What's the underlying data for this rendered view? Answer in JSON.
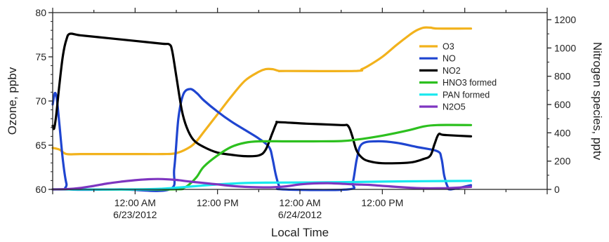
{
  "chart_data": {
    "type": "line",
    "xlabel": "Local Time",
    "ylabel_left": "Ozone, ppbv",
    "ylabel_right": "Nitrogen species, pptv",
    "x_range_hours": [
      -12,
      60
    ],
    "x_tick_labels": [
      {
        "hour": 0,
        "line1": "12:00 AM",
        "line2": "6/23/2012"
      },
      {
        "hour": 12,
        "line1": "12:00 PM",
        "line2": ""
      },
      {
        "hour": 24,
        "line1": "12:00 AM",
        "line2": "6/24/2012"
      },
      {
        "hour": 36,
        "line1": "12:00 PM",
        "line2": ""
      }
    ],
    "y_left": {
      "range": [
        60,
        80
      ],
      "ticks": [
        "60",
        "65",
        "70",
        "75",
        "80"
      ]
    },
    "y_right": {
      "range": [
        0,
        1250
      ],
      "ticks": [
        "0",
        "200",
        "400",
        "600",
        "800",
        "1000",
        "1200"
      ]
    },
    "legend_position": "upper right",
    "series": [
      {
        "name": "O3",
        "axis": "left",
        "color": "#f2b21c",
        "points": [
          [
            -12,
            64.7
          ],
          [
            -11,
            64.5
          ],
          [
            -10,
            64.0
          ],
          [
            -8,
            64.0
          ],
          [
            -4,
            64.0
          ],
          [
            0,
            64.0
          ],
          [
            4,
            64.0
          ],
          [
            6,
            64.1
          ],
          [
            8,
            64.8
          ],
          [
            9,
            65.5
          ],
          [
            10,
            66.5
          ],
          [
            12,
            68.5
          ],
          [
            14,
            70.5
          ],
          [
            16,
            72.3
          ],
          [
            18,
            73.3
          ],
          [
            19,
            73.6
          ],
          [
            20,
            73.6
          ],
          [
            21,
            73.4
          ],
          [
            22,
            73.4
          ],
          [
            32,
            73.4
          ],
          [
            33,
            73.6
          ],
          [
            34,
            74.0
          ],
          [
            36,
            75.0
          ],
          [
            38,
            76.3
          ],
          [
            40,
            77.5
          ],
          [
            41,
            78.0
          ],
          [
            42,
            78.3
          ],
          [
            43,
            78.3
          ],
          [
            44,
            78.2
          ],
          [
            48,
            78.2
          ],
          [
            48.9,
            78.2
          ]
        ]
      },
      {
        "name": "NO",
        "axis": "right",
        "color": "#1f45d0",
        "points": [
          [
            -12,
            600
          ],
          [
            -11.7,
            680
          ],
          [
            -11.4,
            640
          ],
          [
            -11,
            450
          ],
          [
            -10.5,
            200
          ],
          [
            -10,
            40
          ],
          [
            -9.5,
            0
          ],
          [
            -2,
            0
          ],
          [
            5,
            0
          ],
          [
            5.7,
            150
          ],
          [
            6.3,
            500
          ],
          [
            7,
            670
          ],
          [
            8,
            710
          ],
          [
            9,
            680
          ],
          [
            10,
            630
          ],
          [
            12,
            550
          ],
          [
            14,
            480
          ],
          [
            16,
            420
          ],
          [
            18,
            360
          ],
          [
            19.5,
            300
          ],
          [
            20,
            220
          ],
          [
            20.5,
            100
          ],
          [
            21,
            20
          ],
          [
            21.5,
            0
          ],
          [
            31,
            0
          ],
          [
            31.7,
            50
          ],
          [
            32.3,
            220
          ],
          [
            33,
            320
          ],
          [
            35,
            340
          ],
          [
            38,
            330
          ],
          [
            41,
            300
          ],
          [
            44,
            270
          ],
          [
            44.6,
            220
          ],
          [
            45,
            100
          ],
          [
            45.5,
            20
          ],
          [
            46,
            0
          ],
          [
            48.9,
            30
          ]
        ]
      },
      {
        "name": "NO2",
        "axis": "right",
        "color": "#000000",
        "points": [
          [
            -12,
            450
          ],
          [
            -11.8,
            430
          ],
          [
            -11.5,
            520
          ],
          [
            -11,
            750
          ],
          [
            -10.5,
            950
          ],
          [
            -10,
            1060
          ],
          [
            -9.5,
            1100
          ],
          [
            -8,
            1090
          ],
          [
            -4,
            1070
          ],
          [
            0,
            1050
          ],
          [
            4,
            1030
          ],
          [
            5,
            1025
          ],
          [
            5.4,
            980
          ],
          [
            6,
            800
          ],
          [
            6.8,
            560
          ],
          [
            7.5,
            440
          ],
          [
            8.5,
            350
          ],
          [
            10,
            300
          ],
          [
            12,
            260
          ],
          [
            14,
            245
          ],
          [
            16,
            235
          ],
          [
            18,
            240
          ],
          [
            19,
            280
          ],
          [
            20,
            400
          ],
          [
            20.6,
            470
          ],
          [
            21,
            475
          ],
          [
            25,
            465
          ],
          [
            30,
            455
          ],
          [
            31,
            450
          ],
          [
            31.6,
            380
          ],
          [
            32.2,
            280
          ],
          [
            33,
            225
          ],
          [
            34,
            200
          ],
          [
            36,
            185
          ],
          [
            40,
            190
          ],
          [
            42,
            215
          ],
          [
            43,
            240
          ],
          [
            43.6,
            320
          ],
          [
            44.2,
            390
          ],
          [
            45,
            385
          ],
          [
            48.9,
            375
          ]
        ]
      },
      {
        "name": "HNO3 formed",
        "axis": "right",
        "color": "#2dc01f",
        "points": [
          [
            -12,
            0
          ],
          [
            5,
            0
          ],
          [
            7,
            10
          ],
          [
            8,
            40
          ],
          [
            9,
            90
          ],
          [
            10,
            160
          ],
          [
            12,
            240
          ],
          [
            14,
            300
          ],
          [
            16,
            330
          ],
          [
            18,
            340
          ],
          [
            22,
            340
          ],
          [
            26,
            340
          ],
          [
            30,
            342
          ],
          [
            32,
            350
          ],
          [
            36,
            380
          ],
          [
            40,
            420
          ],
          [
            42,
            445
          ],
          [
            44,
            455
          ],
          [
            48.9,
            455
          ]
        ]
      },
      {
        "name": "PAN  formed",
        "axis": "right",
        "color": "#18e8ee",
        "points": [
          [
            -12,
            0
          ],
          [
            0,
            0
          ],
          [
            4,
            5
          ],
          [
            8,
            20
          ],
          [
            12,
            35
          ],
          [
            16,
            45
          ],
          [
            20,
            48
          ],
          [
            28,
            50
          ],
          [
            36,
            55
          ],
          [
            42,
            58
          ],
          [
            48.9,
            60
          ]
        ]
      },
      {
        "name": "N2O5",
        "axis": "right",
        "color": "#7e35c0",
        "points": [
          [
            -12,
            0
          ],
          [
            -10,
            2
          ],
          [
            -8,
            10
          ],
          [
            -6,
            25
          ],
          [
            -4,
            42
          ],
          [
            -2,
            55
          ],
          [
            0,
            65
          ],
          [
            2,
            72
          ],
          [
            4,
            73
          ],
          [
            6,
            67
          ],
          [
            8,
            55
          ],
          [
            10,
            45
          ],
          [
            12,
            35
          ],
          [
            14,
            25
          ],
          [
            16,
            18
          ],
          [
            18,
            15
          ],
          [
            20,
            15
          ],
          [
            22,
            22
          ],
          [
            24,
            35
          ],
          [
            26,
            42
          ],
          [
            28,
            44
          ],
          [
            30,
            40
          ],
          [
            32,
            35
          ],
          [
            34,
            32
          ],
          [
            36,
            25
          ],
          [
            38,
            18
          ],
          [
            40,
            12
          ],
          [
            42,
            8
          ],
          [
            44,
            8
          ],
          [
            46,
            10
          ],
          [
            48.9,
            18
          ]
        ]
      }
    ]
  }
}
